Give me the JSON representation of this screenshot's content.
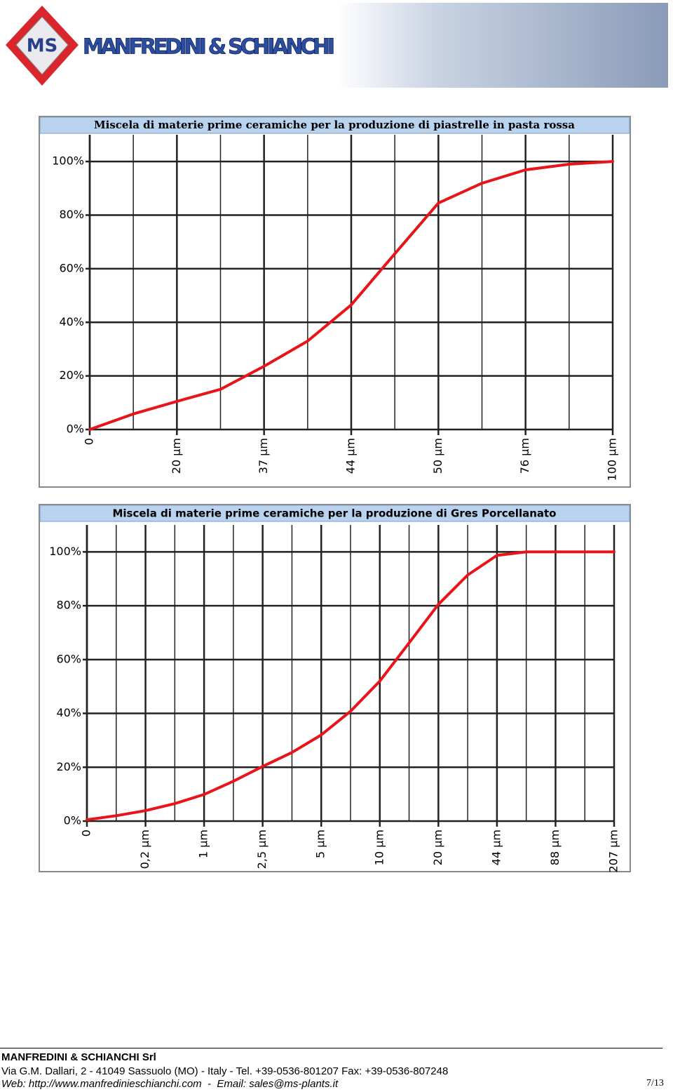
{
  "header": {
    "logo_initials": "MS",
    "company": "MANFREDINI & SCHIANCHI"
  },
  "chart_data": [
    {
      "type": "line",
      "title": "Miscela di materie prime ceramiche per la produzione di piastrelle in pasta rossa",
      "categories": [
        "0",
        null,
        "20 µm",
        null,
        "37 µm",
        null,
        "44 µm",
        null,
        "50 µm",
        null,
        "76 µm",
        null,
        "100 µm"
      ],
      "values": [
        0,
        5.8,
        10.5,
        15,
        23.6,
        33,
        46.5,
        65.6,
        84.5,
        91.9,
        96.9,
        99,
        100
      ],
      "color": "#e8141a",
      "ylim": [
        0,
        110
      ],
      "yticks": [
        {
          "value": 0,
          "label": "0%"
        },
        {
          "value": 20,
          "label": "20%"
        },
        {
          "value": 40,
          "label": "40%"
        },
        {
          "value": 60,
          "label": "60%"
        },
        {
          "value": 80,
          "label": "80%"
        },
        {
          "value": 100,
          "label": "100%"
        }
      ],
      "grid": true
    },
    {
      "type": "line",
      "title": "Miscela di materie prime ceramiche per la produzione di Gres Porcellanato",
      "categories": [
        "0",
        null,
        "0,2 µm",
        null,
        "1 µm",
        null,
        "2,5 µm",
        null,
        "5 µm",
        null,
        "10 µm",
        null,
        "20 µm",
        null,
        "44 µm",
        null,
        "88 µm",
        null,
        "207 µm"
      ],
      "values": [
        0.5,
        2,
        3.9,
        6.5,
        9.9,
        14.8,
        20.3,
        25.5,
        32,
        40.8,
        52,
        66.2,
        80.5,
        91.4,
        98.7,
        100,
        100,
        100,
        100
      ],
      "color": "#e8141a",
      "ylim": [
        0,
        110
      ],
      "yticks": [
        {
          "value": 0,
          "label": "0%"
        },
        {
          "value": 20,
          "label": "20%"
        },
        {
          "value": 40,
          "label": "40%"
        },
        {
          "value": 60,
          "label": "60%"
        },
        {
          "value": 80,
          "label": "80%"
        },
        {
          "value": 100,
          "label": "100%"
        }
      ],
      "grid": true
    }
  ],
  "footer": {
    "company": "MANFREDINI & SCHIANCHI Srl",
    "address": "Via G.M. Dallari, 2 - 41049 Sassuolo (MO) - Italy - Tel. +39-0536-801207 Fax: +39-0536-807248",
    "web": "Web: http://www.manfredinieschianchi.com  -  Email: sales@ms-plants.it",
    "page": "7/13"
  }
}
